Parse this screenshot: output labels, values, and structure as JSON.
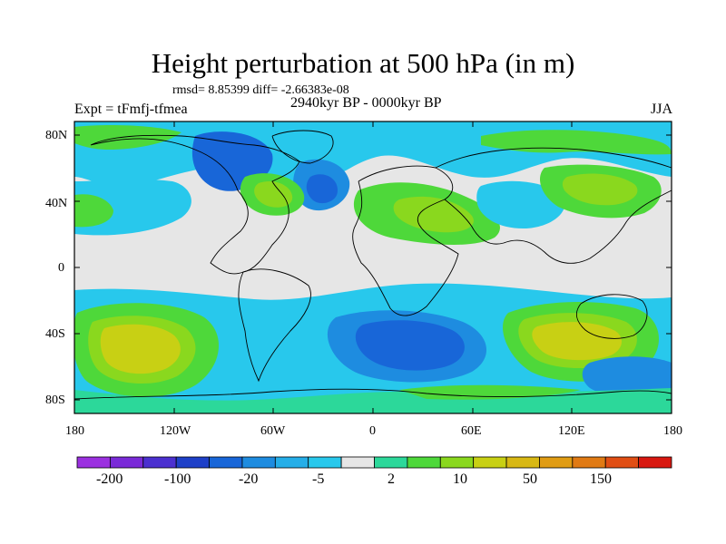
{
  "title": "Height perturbation at 500 hPa (in m)",
  "stats": "rmsd= 8.85399  diff= -2.66383e-08",
  "left_label": "Expt = tFmfj-tfmea",
  "center_label": "2940kyr BP - 0000kyr BP",
  "right_label": "JJA",
  "lat_labels": [
    "80N",
    "40N",
    "0",
    "40S",
    "80S"
  ],
  "lon_labels": [
    "180",
    "120W",
    "60W",
    "0",
    "60E",
    "120E",
    "180"
  ],
  "colorbar": {
    "colors": [
      "#9b30e0",
      "#7a2ad8",
      "#4b30d0",
      "#1e40c8",
      "#1866d8",
      "#1e8ce0",
      "#25aee8",
      "#28c8ec",
      "#e6e6e6",
      "#2cd89a",
      "#4ed83a",
      "#8ad81e",
      "#c8d014",
      "#d8b814",
      "#e09c14",
      "#e07a14",
      "#e04e14",
      "#d81810"
    ],
    "labels": [
      "-200",
      "-100",
      "-20",
      "-5",
      "2",
      "10",
      "50",
      "150"
    ]
  },
  "field": {
    "background": "#e6e6e6",
    "colors": {
      "neg1": "#28c8ec",
      "neg2": "#1e8ce0",
      "neg3": "#1866d8",
      "pos1": "#2cd89a",
      "pos2": "#4ed83a",
      "pos3": "#8ad81e",
      "pos4": "#c8d014"
    }
  }
}
